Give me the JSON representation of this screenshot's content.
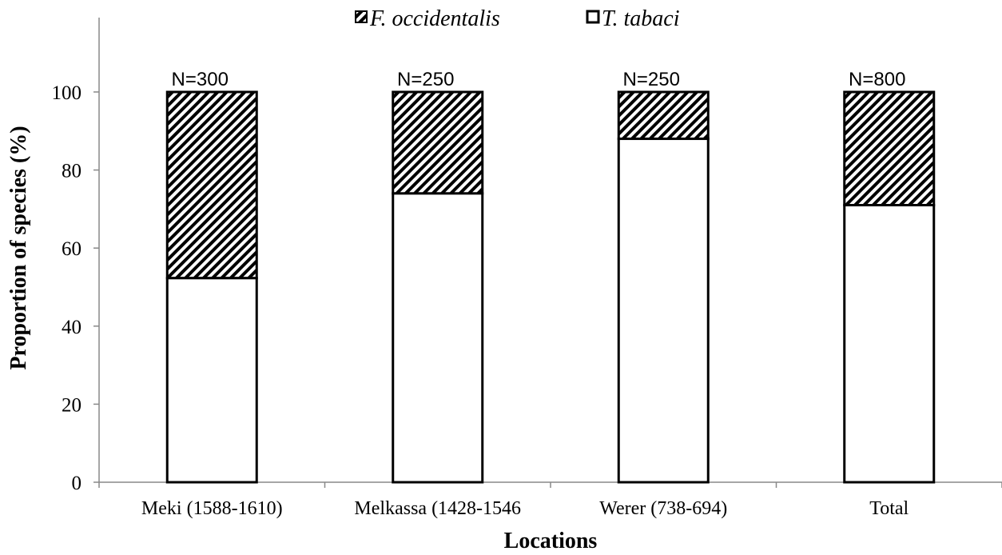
{
  "chart_data": {
    "type": "bar",
    "stacked": true,
    "xlabel": "Locations",
    "ylabel": "Proportion of species (%)",
    "ylim": [
      0,
      100
    ],
    "yticks": [
      0,
      20,
      40,
      60,
      80,
      100
    ],
    "grid": false,
    "legend_position": "top-center",
    "categories": [
      "Meki (1588-1610)",
      "Melkassa (1428-1546",
      "Werer (738-694)",
      "Total"
    ],
    "annotations": [
      "N=300",
      "N=250",
      "N=250",
      "N=800"
    ],
    "series": [
      {
        "name": "T. tabaci",
        "values": [
          52.3,
          74,
          88,
          71
        ],
        "fill": "solid",
        "color": "#ffffff"
      },
      {
        "name": "F. occidentalis",
        "values": [
          47.7,
          26,
          12,
          29
        ],
        "fill": "hatched",
        "color": "#000000"
      }
    ]
  }
}
